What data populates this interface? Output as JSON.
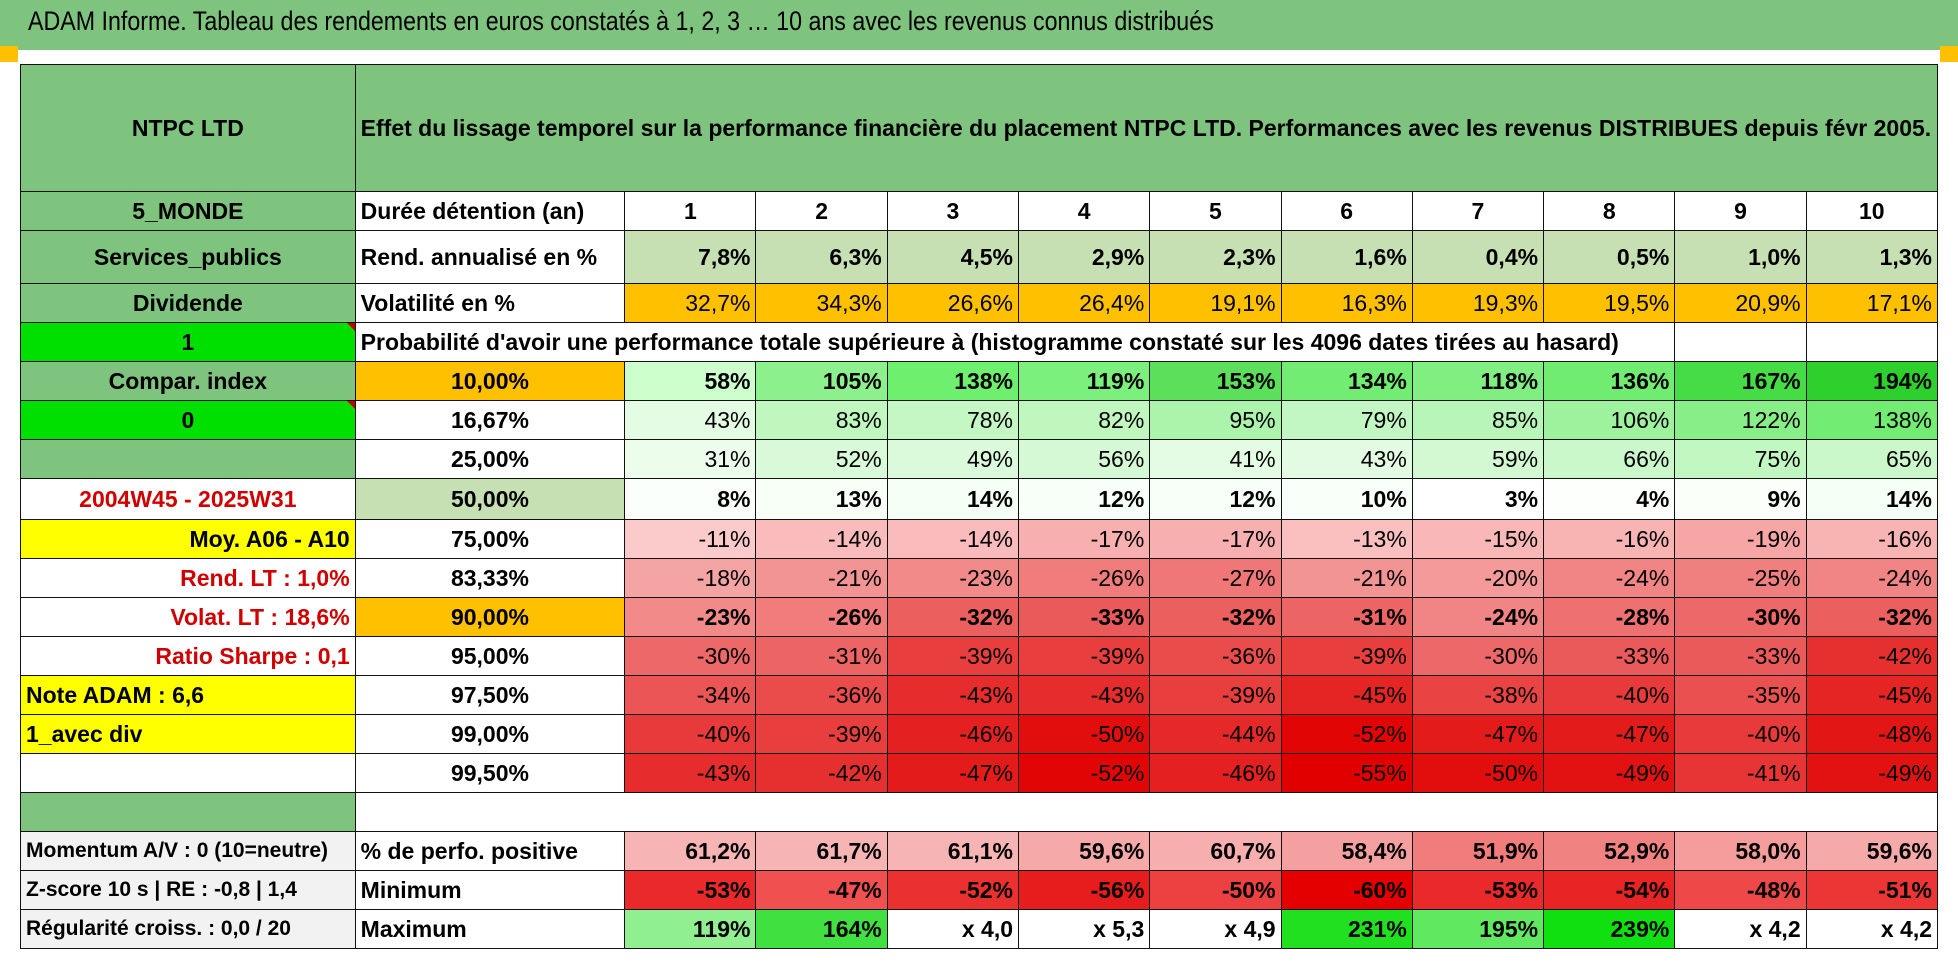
{
  "title": "ADAM Informe. Tableau des rendements en euros constatés à 1, 2, 3 … 10 ans avec les revenus connus distribués",
  "left": {
    "name": "NTPC LTD",
    "zone": "5_MONDE",
    "sector": "Services_publics",
    "type": "Dividende",
    "one": "1",
    "compar": "Compar. index",
    "zero": "0",
    "period": "2004W45 - 2025W31",
    "moy": "Moy. A06 - A10",
    "rend_lt": "Rend. LT :    1,0%",
    "volat_lt": "Volat. LT :    18,6%",
    "sharpe": "Ratio Sharpe :    0,1",
    "note": "Note ADAM : 6,6",
    "avecdiv": "1_avec div",
    "momentum": "Momentum A/V : 0 (10=neutre)",
    "zscore": "Z-score 10 s | RE : -0,8 | 1,4",
    "regul": "Régularité croiss. : 0,0 / 20"
  },
  "header_text": "Effet du lissage temporel sur la performance financière du placement NTPC LTD. Performances avec les revenus DISTRIBUES depuis févr 2005.",
  "duree_label": "Durée détention (an)",
  "years": [
    "1",
    "2",
    "3",
    "4",
    "5",
    "6",
    "7",
    "8",
    "9",
    "10"
  ],
  "rend_label": "Rend. annualisé en %",
  "rend": [
    "7,8%",
    "6,3%",
    "4,5%",
    "2,9%",
    "2,3%",
    "1,6%",
    "0,4%",
    "0,5%",
    "1,0%",
    "1,3%"
  ],
  "vol_label": "Volatilité en %",
  "vol": [
    "32,7%",
    "34,3%",
    "26,6%",
    "26,4%",
    "19,1%",
    "16,3%",
    "19,3%",
    "19,5%",
    "20,9%",
    "17,1%"
  ],
  "prob_label": "Probabilité d'avoir une performance totale supérieure à (histogramme constaté sur les 4096 dates tirées au hasard)",
  "quantiles": [
    {
      "q": "10,00%",
      "vals": [
        "58%",
        "105%",
        "138%",
        "119%",
        "153%",
        "134%",
        "118%",
        "136%",
        "167%",
        "194%"
      ],
      "colors": [
        "#ccffcc",
        "#8cf08c",
        "#6ef06e",
        "#7cf07c",
        "#5ce05c",
        "#72ec72",
        "#80ee80",
        "#70ec70",
        "#46dc46",
        "#2ed02e"
      ]
    },
    {
      "q": "16,67%",
      "vals": [
        "43%",
        "83%",
        "78%",
        "82%",
        "95%",
        "79%",
        "85%",
        "106%",
        "122%",
        "138%"
      ],
      "colors": [
        "#e4fce4",
        "#bff7bf",
        "#c4f7c4",
        "#bff7bf",
        "#acf4ac",
        "#c2f6c2",
        "#b8f5b8",
        "#9ef29e",
        "#88ef88",
        "#72ec72"
      ]
    },
    {
      "q": "25,00%",
      "vals": [
        "31%",
        "52%",
        "49%",
        "56%",
        "41%",
        "43%",
        "59%",
        "66%",
        "75%",
        "65%"
      ],
      "colors": [
        "#ecfdec",
        "#d8fad8",
        "#dbfadb",
        "#d4f9d4",
        "#e4fce4",
        "#e2fbe2",
        "#d2f9d2",
        "#caf8ca",
        "#c1f7c1",
        "#cbf8cb"
      ]
    },
    {
      "q": "50,00%",
      "vals": [
        "8%",
        "13%",
        "14%",
        "12%",
        "12%",
        "10%",
        "3%",
        "4%",
        "9%",
        "14%"
      ],
      "colors": [
        "#fbfffb",
        "#f7fff7",
        "#f6fff6",
        "#f8fff8",
        "#f8fff8",
        "#f9fff9",
        "#fefffe",
        "#fdfffd",
        "#fafffa",
        "#f6fff6"
      ]
    },
    {
      "q": "75,00%",
      "vals": [
        "-11%",
        "-14%",
        "-14%",
        "-17%",
        "-17%",
        "-13%",
        "-15%",
        "-16%",
        "-19%",
        "-16%"
      ],
      "colors": [
        "#fbcaca",
        "#f9bbbb",
        "#f9bbbb",
        "#f8afaf",
        "#f8afaf",
        "#fabfbf",
        "#f9b7b7",
        "#f8b3b3",
        "#f7a6a6",
        "#f8b3b3"
      ]
    },
    {
      "q": "83,33%",
      "vals": [
        "-18%",
        "-21%",
        "-23%",
        "-26%",
        "-27%",
        "-21%",
        "-20%",
        "-24%",
        "-25%",
        "-24%"
      ],
      "colors": [
        "#f5a4a4",
        "#f39494",
        "#f28a8a",
        "#f07c7c",
        "#ef7777",
        "#f39494",
        "#f49a9a",
        "#f18484",
        "#f07f7f",
        "#f18484"
      ]
    },
    {
      "q": "90,00%",
      "vals": [
        "-23%",
        "-26%",
        "-32%",
        "-33%",
        "-32%",
        "-31%",
        "-24%",
        "-28%",
        "-30%",
        "-32%"
      ],
      "colors": [
        "#f28a8a",
        "#f07c7c",
        "#ec5f5f",
        "#eb5a5a",
        "#ec5f5f",
        "#ed6464",
        "#f18484",
        "#ee7070",
        "#ed6868",
        "#ec5f5f"
      ]
    },
    {
      "q": "95,00%",
      "vals": [
        "-30%",
        "-31%",
        "-39%",
        "-39%",
        "-36%",
        "-39%",
        "-30%",
        "-33%",
        "-33%",
        "-42%"
      ],
      "colors": [
        "#ed6868",
        "#ed6464",
        "#e83e3e",
        "#e83e3e",
        "#ea4c4c",
        "#e83e3e",
        "#ed6868",
        "#eb5a5a",
        "#eb5a5a",
        "#e63030"
      ]
    },
    {
      "q": "97,50%",
      "vals": [
        "-34%",
        "-36%",
        "-43%",
        "-43%",
        "-39%",
        "-45%",
        "-38%",
        "-40%",
        "-35%",
        "-45%"
      ],
      "colors": [
        "#eb5555",
        "#ea4c4c",
        "#e62c2c",
        "#e62c2c",
        "#e83e3e",
        "#e52424",
        "#e94343",
        "#e83a3a",
        "#ea5050",
        "#e52424"
      ]
    },
    {
      "q": "99,00%",
      "vals": [
        "-40%",
        "-39%",
        "-46%",
        "-50%",
        "-44%",
        "-52%",
        "-47%",
        "-47%",
        "-40%",
        "-48%"
      ],
      "colors": [
        "#e83a3a",
        "#e83e3e",
        "#e42020",
        "#e20e0e",
        "#e52828",
        "#e10505",
        "#e31b1b",
        "#e31b1b",
        "#e83a3a",
        "#e31616"
      ]
    },
    {
      "q": "99,50%",
      "vals": [
        "-43%",
        "-42%",
        "-47%",
        "-52%",
        "-46%",
        "-55%",
        "-50%",
        "-49%",
        "-41%",
        "-49%"
      ],
      "colors": [
        "#e62c2c",
        "#e63030",
        "#e31b1b",
        "#e10505",
        "#e42020",
        "#e00000",
        "#e20e0e",
        "#e21212",
        "#e73535",
        "#e21212"
      ]
    }
  ],
  "pct_label": "% de perfo. positive",
  "pct": [
    "61,2%",
    "61,7%",
    "61,1%",
    "59,6%",
    "60,7%",
    "58,4%",
    "51,9%",
    "52,9%",
    "58,0%",
    "59,6%"
  ],
  "pct_colors": [
    "#f7b4b4",
    "#f7b4b4",
    "#f7b4b4",
    "#f6a9a9",
    "#f7aeae",
    "#f5a0a0",
    "#f07c7c",
    "#f08282",
    "#f59c9c",
    "#f6a9a9"
  ],
  "min_label": "Minimum",
  "min": [
    "-53%",
    "-47%",
    "-52%",
    "-56%",
    "-50%",
    "-60%",
    "-53%",
    "-54%",
    "-48%",
    "-51%"
  ],
  "min_colors": [
    "#ea2a2a",
    "#f05050",
    "#eb3030",
    "#e71c1c",
    "#ed4040",
    "#e40000",
    "#ea2a2a",
    "#e92424",
    "#ee4848",
    "#ec3636"
  ],
  "max_label": "Maximum",
  "max": [
    "119%",
    "164%",
    "x 4,0",
    "x 5,3",
    "x 4,9",
    "231%",
    "195%",
    "239%",
    "x 4,2",
    "x 4,2"
  ],
  "max_colors": [
    "#90f090",
    "#40e040",
    "#ffffff",
    "#ffffff",
    "#ffffff",
    "#20e020",
    "#60e860",
    "#10e010",
    "#ffffff",
    "#ffffff"
  ]
}
